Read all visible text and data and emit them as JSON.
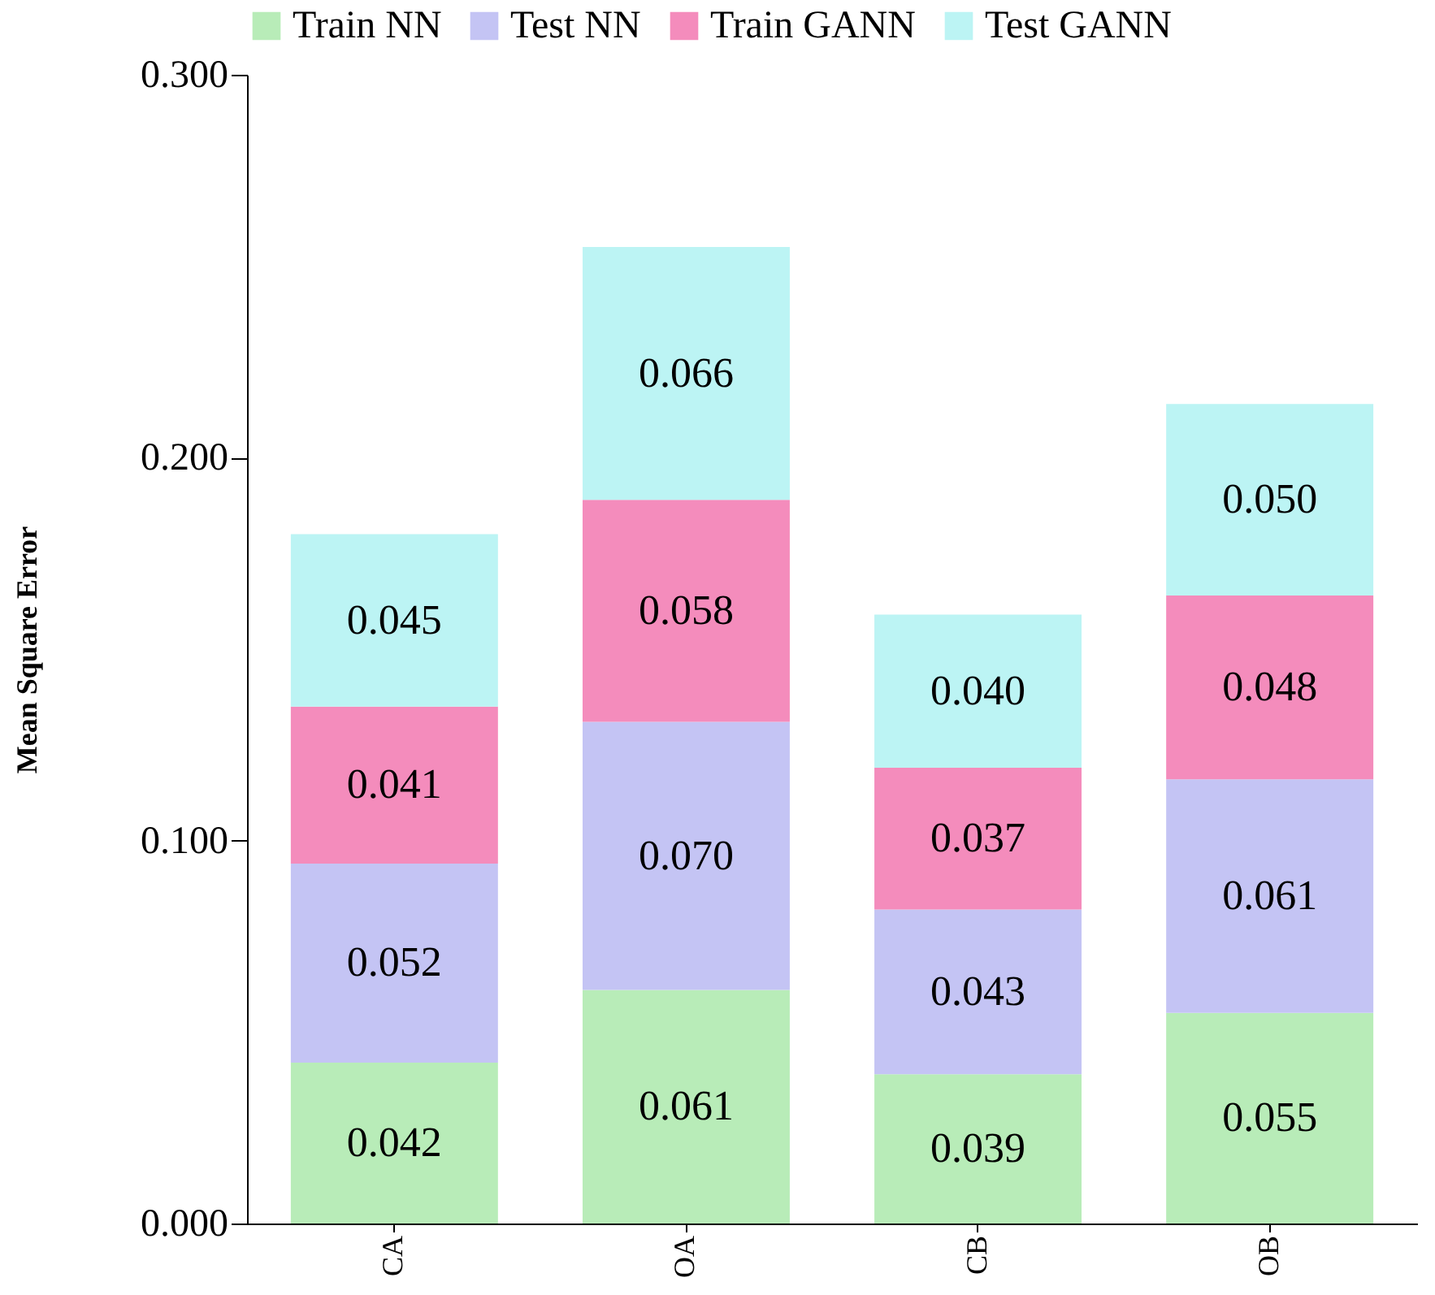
{
  "chart_data": {
    "type": "bar",
    "stacked": true,
    "ylabel": "Mean Square Error",
    "categories": [
      "CA",
      "OA",
      "CB",
      "OB"
    ],
    "series": [
      {
        "name": "Train NN",
        "color": "#b8ecb8",
        "values": [
          0.042,
          0.061,
          0.039,
          0.055
        ],
        "value_labels": [
          "0.042",
          "0.061",
          "0.039",
          "0.055"
        ]
      },
      {
        "name": "Test NN",
        "color": "#c4c4f4",
        "values": [
          0.052,
          0.07,
          0.043,
          0.061
        ],
        "value_labels": [
          "0.052",
          "0.070",
          "0.043",
          "0.061"
        ]
      },
      {
        "name": "Train GANN",
        "color": "#f48cbc",
        "values": [
          0.041,
          0.058,
          0.037,
          0.048
        ],
        "value_labels": [
          "0.041",
          "0.058",
          "0.037",
          "0.048"
        ]
      },
      {
        "name": "Test GANN",
        "color": "#bcf4f4",
        "values": [
          0.045,
          0.066,
          0.04,
          0.05
        ],
        "value_labels": [
          "0.045",
          "0.066",
          "0.040",
          "0.050"
        ]
      }
    ],
    "ylim": [
      0,
      0.3
    ],
    "yticks": [
      {
        "value": 0,
        "label": "0.000"
      },
      {
        "value": 0.1,
        "label": "0.100"
      },
      {
        "value": 0.2,
        "label": "0.200"
      },
      {
        "value": 0.3,
        "label": "0.300"
      }
    ],
    "legend": "top",
    "grid": false
  }
}
